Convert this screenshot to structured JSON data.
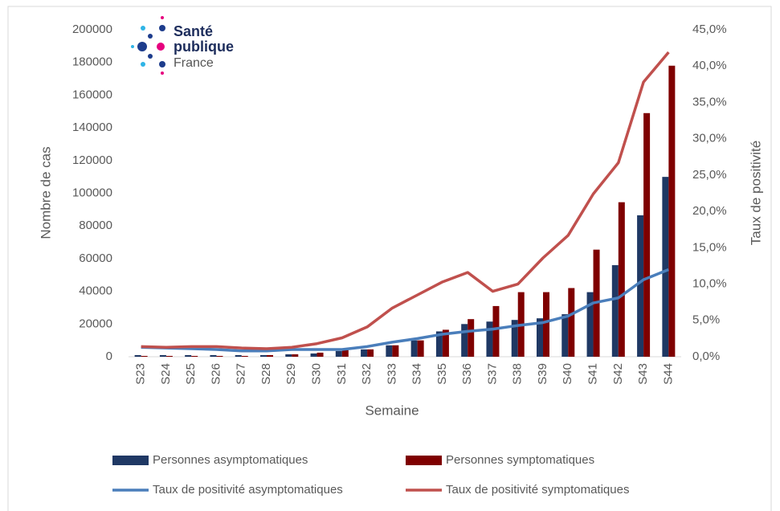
{
  "chart_data": {
    "type": "bar_line",
    "logo_text": [
      "Santé",
      "publique",
      "France"
    ],
    "x_label": "Semaine",
    "y_label": "Nombre de cas",
    "y2_label": "Taux de positivité",
    "categories": [
      "S23",
      "S24",
      "S25",
      "S26",
      "S27",
      "S28",
      "S29",
      "S30",
      "S31",
      "S32",
      "S33",
      "S34",
      "S35",
      "S36",
      "S37",
      "S38",
      "S39",
      "S40",
      "S41",
      "S42",
      "S43",
      "S44"
    ],
    "series": [
      {
        "name": "Personnes asymptomatiques",
        "type": "bar",
        "color": "#1f3864",
        "values": [
          1000,
          1000,
          1000,
          1000,
          1000,
          1000,
          1500,
          2000,
          3500,
          4500,
          7000,
          10000,
          15500,
          20000,
          21500,
          22500,
          23500,
          26000,
          39500,
          56000,
          86500,
          110000
        ]
      },
      {
        "name": "Personnes symptomatiques",
        "type": "bar",
        "color": "#7f0000",
        "values": [
          500,
          500,
          500,
          500,
          500,
          1000,
          1500,
          2500,
          4000,
          4500,
          7000,
          10000,
          16500,
          23000,
          31000,
          39500,
          39500,
          42000,
          65500,
          94500,
          149000,
          178000
        ]
      },
      {
        "name": "Taux de positivité asymptomatiques",
        "type": "line",
        "axis": "y2",
        "color": "#4a7ebb",
        "values": [
          1.3,
          1.2,
          1.1,
          1.0,
          0.8,
          0.8,
          1.0,
          1.0,
          1.0,
          1.4,
          2.0,
          2.5,
          3.1,
          3.5,
          3.8,
          4.3,
          4.7,
          5.6,
          7.4,
          8.1,
          10.6,
          12.0
        ]
      },
      {
        "name": "Taux de positivité symptomatiques",
        "type": "line",
        "axis": "y2",
        "color": "#c0504d",
        "values": [
          1.4,
          1.3,
          1.4,
          1.4,
          1.2,
          1.1,
          1.3,
          1.8,
          2.6,
          4.1,
          6.7,
          8.5,
          10.3,
          11.6,
          9.0,
          10.0,
          13.6,
          16.7,
          22.4,
          26.7,
          37.8,
          41.9
        ]
      }
    ],
    "ylim": [
      0,
      200000
    ],
    "yticks": [
      0,
      20000,
      40000,
      60000,
      80000,
      100000,
      120000,
      140000,
      160000,
      180000,
      200000
    ],
    "y2lim": [
      0,
      45
    ],
    "y2ticks": [
      {
        "value": 0,
        "label": "0,0%"
      },
      {
        "value": 5,
        "label": "5,0%"
      },
      {
        "value": 10,
        "label": "10,0%"
      },
      {
        "value": 15,
        "label": "15,0%"
      },
      {
        "value": 20,
        "label": "20,0%"
      },
      {
        "value": 25,
        "label": "25,0%"
      },
      {
        "value": 30,
        "label": "30,0%"
      },
      {
        "value": 35,
        "label": "35,0%"
      },
      {
        "value": 40,
        "label": "40,0%"
      },
      {
        "value": 45,
        "label": "45,0%"
      }
    ],
    "grid": false,
    "legend": "bottom"
  }
}
